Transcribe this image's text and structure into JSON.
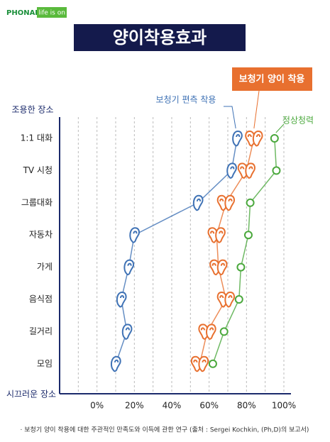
{
  "chart_data": {
    "type": "line",
    "logo": "PHONAK",
    "tagline": "life is on",
    "title": "양이착용효과",
    "y_top_label": "조용한 장소",
    "y_bottom_label": "시끄러운 장소",
    "categories": [
      "1:1 대화",
      "TV 시청",
      "그룹대화",
      "자동차",
      "가게",
      "음식점",
      "길거리",
      "모임"
    ],
    "series": [
      {
        "name": "보청기 편측 착용",
        "color": "#3f72b5",
        "marker": "ear",
        "values": [
          75,
          72,
          54,
          20,
          17,
          13,
          16,
          10
        ]
      },
      {
        "name": "보청기 양이 착용",
        "color": "#e8702f",
        "marker": "ears",
        "values": [
          84,
          80,
          69,
          64,
          65,
          69,
          59,
          55
        ]
      },
      {
        "name": "정상청력",
        "color": "#4aa83c",
        "marker": "circle",
        "values": [
          95,
          96,
          82,
          81,
          77,
          76,
          68,
          62
        ]
      }
    ],
    "xlim": [
      -20,
      100
    ],
    "xticks": [
      {
        "value": 0,
        "label": "0%"
      },
      {
        "value": 20,
        "label": "20%"
      },
      {
        "value": 40,
        "label": "40%"
      },
      {
        "value": 60,
        "label": "60%"
      },
      {
        "value": 80,
        "label": "80%"
      },
      {
        "value": 100,
        "label": "100%"
      }
    ],
    "minor_xticks": [
      -10,
      10,
      30,
      50,
      70,
      90
    ],
    "grid": true,
    "footnote": "· 보청기 양이 착용에 대한 주관적인 만족도와 이득에 관한 연구 (출처 : Sergei Kochkin, (Ph,D)의 보고서)"
  }
}
